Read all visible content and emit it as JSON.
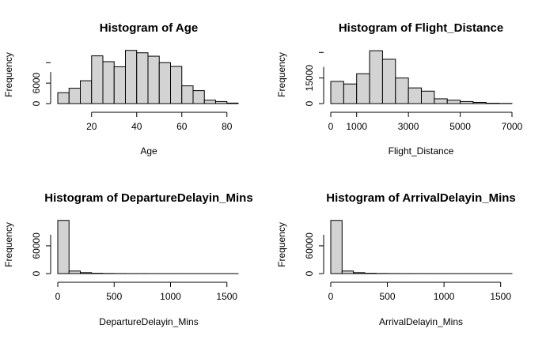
{
  "chart_data": [
    {
      "type": "bar",
      "title": "Histogram of Age",
      "xlabel": "Age",
      "ylabel": "Frequency",
      "x_ticks": [
        20,
        40,
        60,
        80
      ],
      "y_ticks": [
        0,
        6000
      ],
      "bin_edges": [
        5,
        10,
        15,
        20,
        25,
        30,
        35,
        40,
        45,
        50,
        55,
        60,
        65,
        70,
        75,
        80,
        85
      ],
      "values": [
        3200,
        4500,
        6700,
        14000,
        12300,
        10800,
        15600,
        14900,
        13900,
        12000,
        10900,
        5200,
        3800,
        1000,
        600,
        150
      ],
      "ylim": [
        0,
        16000
      ]
    },
    {
      "type": "bar",
      "title": "Histogram of Flight_Distance",
      "xlabel": "Flight_Distance",
      "ylabel": "Frequency",
      "x_ticks": [
        0,
        1000,
        3000,
        5000,
        7000
      ],
      "y_ticks": [
        0,
        15000
      ],
      "bin_edges": [
        0,
        500,
        1000,
        1500,
        2000,
        2500,
        3000,
        3500,
        4000,
        4500,
        5000,
        5500,
        6000,
        6500,
        7000
      ],
      "values": [
        13000,
        11500,
        17500,
        31000,
        26000,
        15000,
        9200,
        7300,
        2800,
        2000,
        1200,
        700,
        200,
        100
      ],
      "ylim": [
        0,
        32000
      ]
    },
    {
      "type": "bar",
      "title": "Histogram of DepartureDelayin_Mins",
      "xlabel": "DepartureDelayin_Mins",
      "ylabel": "Frequency",
      "x_ticks": [
        0,
        500,
        1000,
        1500
      ],
      "y_ticks": [
        0,
        60000
      ],
      "bin_edges": [
        0,
        100,
        200,
        300,
        400,
        500,
        600,
        700,
        800,
        900,
        1000,
        1100,
        1200,
        1300,
        1400,
        1500,
        1600
      ],
      "values": [
        115000,
        5500,
        2000,
        700,
        300,
        150,
        80,
        50,
        30,
        20,
        10,
        8,
        5,
        3,
        2,
        1
      ],
      "ylim": [
        0,
        118000
      ]
    },
    {
      "type": "bar",
      "title": "Histogram of ArrivalDelayin_Mins",
      "xlabel": "ArrivalDelayin_Mins",
      "ylabel": "Frequency",
      "x_ticks": [
        0,
        500,
        1000,
        1500
      ],
      "y_ticks": [
        0,
        60000
      ],
      "bin_edges": [
        0,
        100,
        200,
        300,
        400,
        500,
        600,
        700,
        800,
        900,
        1000,
        1100,
        1200,
        1300,
        1400,
        1500,
        1600
      ],
      "values": [
        115000,
        5500,
        2000,
        700,
        300,
        150,
        80,
        50,
        30,
        20,
        10,
        8,
        5,
        3,
        2,
        1
      ],
      "ylim": [
        0,
        118000
      ]
    }
  ]
}
